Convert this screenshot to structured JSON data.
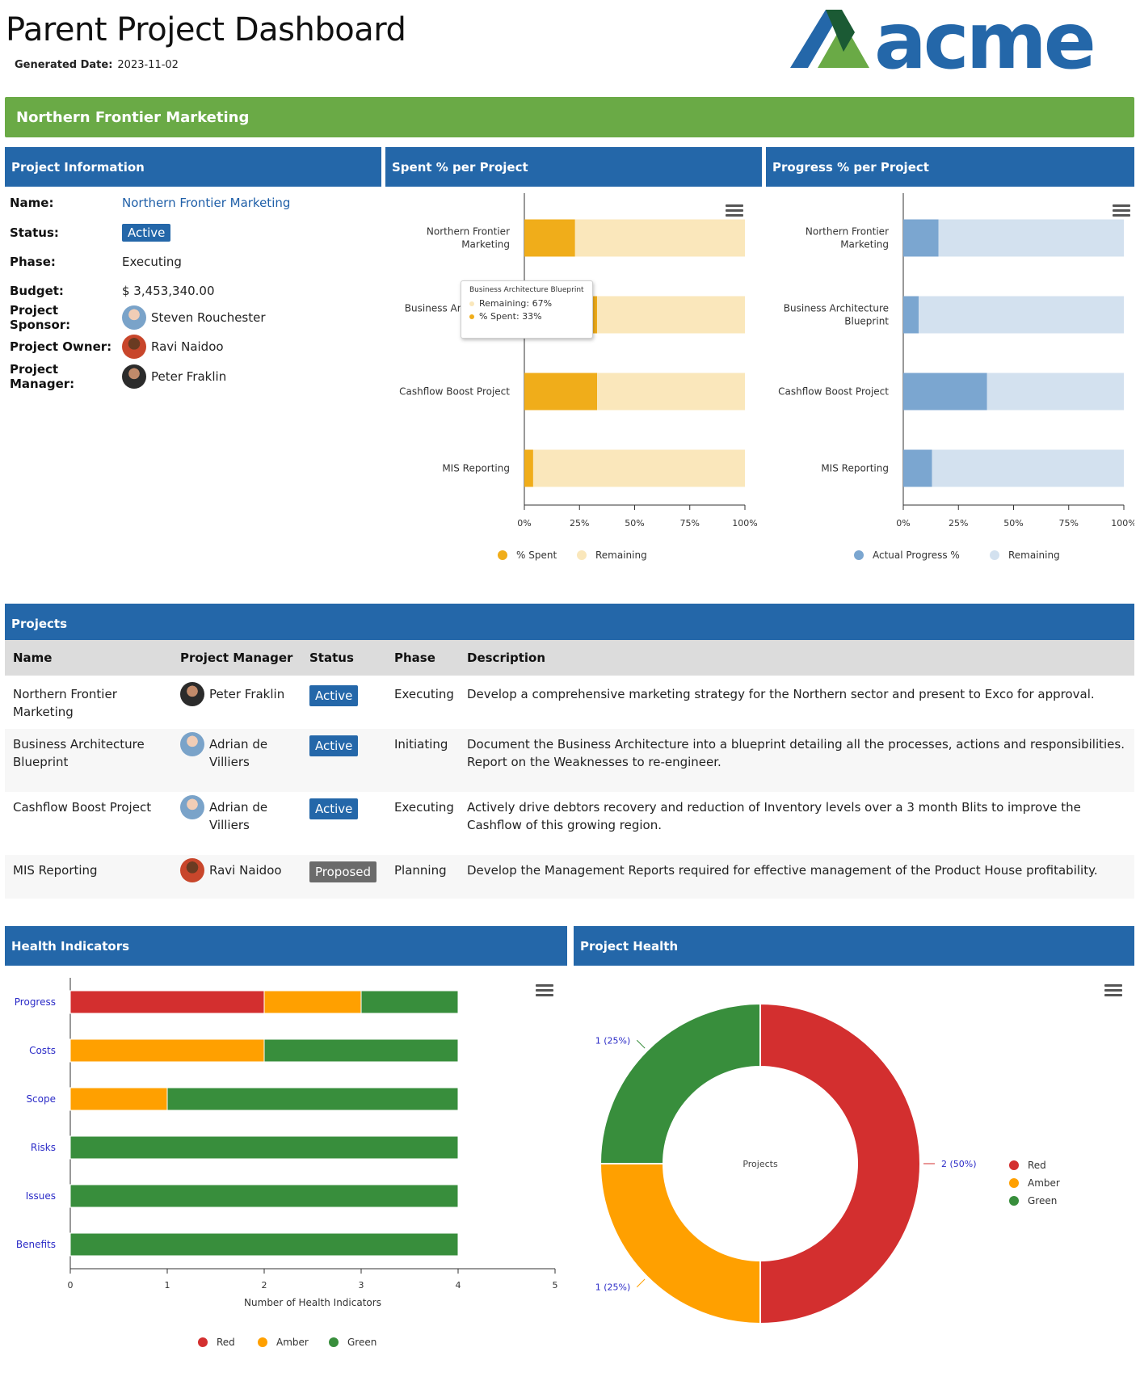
{
  "header": {
    "title": "Parent Project Dashboard",
    "generated_label": "Generated Date:",
    "generated_value": "2023-11-02",
    "logo_text": "acme"
  },
  "banner": {
    "title": "Northern Frontier Marketing"
  },
  "panels": {
    "project_info": "Project Information",
    "spent": "Spent % per Project",
    "progress": "Progress % per Project",
    "projects": "Projects",
    "health_indicators": "Health Indicators",
    "project_health": "Project Health"
  },
  "project_info": {
    "name_label": "Name:",
    "name": "Northern Frontier Marketing",
    "status_label": "Status:",
    "status": "Active",
    "phase_label": "Phase:",
    "phase": "Executing",
    "budget_label": "Budget:",
    "budget": "$ 3,453,340.00",
    "sponsor_label": "Project Sponsor:",
    "sponsor": "Steven Rouchester",
    "owner_label": "Project Owner:",
    "owner": "Ravi Naidoo",
    "manager_label": "Project Manager:",
    "manager": "Peter Fraklin"
  },
  "tooltip": {
    "title": "Business Architecture Blueprint",
    "remaining": "Remaining: 67%",
    "spent": "% Spent: 33%"
  },
  "projects_table": {
    "headers": [
      "Name",
      "Project Manager",
      "Status",
      "Phase",
      "Description"
    ],
    "rows": [
      {
        "name": "Northern Frontier Marketing",
        "manager": "Peter Fraklin",
        "status": "Active",
        "phase": "Executing",
        "description": "Develop a comprehensive marketing strategy for the Northern sector and present to Exco for approval."
      },
      {
        "name": "Business Architecture Blueprint",
        "manager": "Adrian de Villiers",
        "status": "Active",
        "phase": "Initiating",
        "description": "Document the Business Architecture into a blueprint detailing all the processes, actions and responsibilities. Report on the Weaknesses to re-engineer."
      },
      {
        "name": "Cashflow Boost Project",
        "manager": "Adrian de Villiers",
        "status": "Active",
        "phase": "Executing",
        "description": "Actively drive debtors recovery and reduction of Inventory levels over a 3 month Blits to improve the Cashflow of this growing region."
      },
      {
        "name": "MIS Reporting",
        "manager": "Ravi Naidoo",
        "status": "Proposed",
        "phase": "Planning",
        "description": "Develop the Management Reports required for effective management of the Product House profitability."
      }
    ]
  },
  "chart_data": [
    {
      "type": "bar",
      "orientation": "horizontal",
      "stacked": true,
      "categories": [
        "Northern Frontier Marketing",
        "Business Architecture Blueprint",
        "Cashflow Boost Project",
        "MIS Reporting"
      ],
      "series": [
        {
          "name": "% Spent",
          "values": [
            23,
            33,
            33,
            4
          ],
          "color": "#f0ad1a"
        },
        {
          "name": "Remaining",
          "values": [
            77,
            67,
            67,
            96
          ],
          "color": "#fae7bb"
        }
      ],
      "xticks": [
        "0%",
        "25%",
        "50%",
        "75%",
        "100%"
      ],
      "xlim": [
        0,
        100
      ]
    },
    {
      "type": "bar",
      "orientation": "horizontal",
      "stacked": true,
      "categories": [
        "Northern Frontier Marketing",
        "Business Architecture Blueprint",
        "Cashflow Boost Project",
        "MIS Reporting"
      ],
      "series": [
        {
          "name": "Actual Progress %",
          "values": [
            16,
            7,
            38,
            13
          ],
          "color": "#7ba6d0"
        },
        {
          "name": "Remaining",
          "values": [
            84,
            93,
            62,
            87
          ],
          "color": "#d3e1ef"
        }
      ],
      "xticks": [
        "0%",
        "25%",
        "50%",
        "75%",
        "100%"
      ],
      "xlim": [
        0,
        100
      ]
    },
    {
      "type": "bar",
      "orientation": "horizontal",
      "stacked": true,
      "categories": [
        "Progress",
        "Costs",
        "Scope",
        "Risks",
        "Issues",
        "Benefits"
      ],
      "series": [
        {
          "name": "Red",
          "values": [
            2,
            0,
            0,
            0,
            0,
            0
          ],
          "color": "#d32f2f"
        },
        {
          "name": "Amber",
          "values": [
            1,
            2,
            1,
            0,
            0,
            0
          ],
          "color": "#ffa000"
        },
        {
          "name": "Green",
          "values": [
            1,
            2,
            3,
            4,
            4,
            4
          ],
          "color": "#388e3c"
        }
      ],
      "xticks": [
        "0",
        "1",
        "2",
        "3",
        "4",
        "5"
      ],
      "xlim": [
        0,
        5
      ],
      "xlabel": "Number of Health Indicators"
    },
    {
      "type": "pie",
      "donut": true,
      "center_label": "Projects",
      "slices": [
        {
          "name": "Red",
          "value": 2,
          "label": "2 (50%)",
          "color": "#d32f2f"
        },
        {
          "name": "Amber",
          "value": 1,
          "label": "1 (25%)",
          "color": "#ffa000"
        },
        {
          "name": "Green",
          "value": 1,
          "label": "1 (25%)",
          "color": "#388e3c"
        }
      ]
    }
  ],
  "icons": [
    "hamburger-menu-icon",
    "acme-logo-icon",
    "avatar-icon"
  ]
}
